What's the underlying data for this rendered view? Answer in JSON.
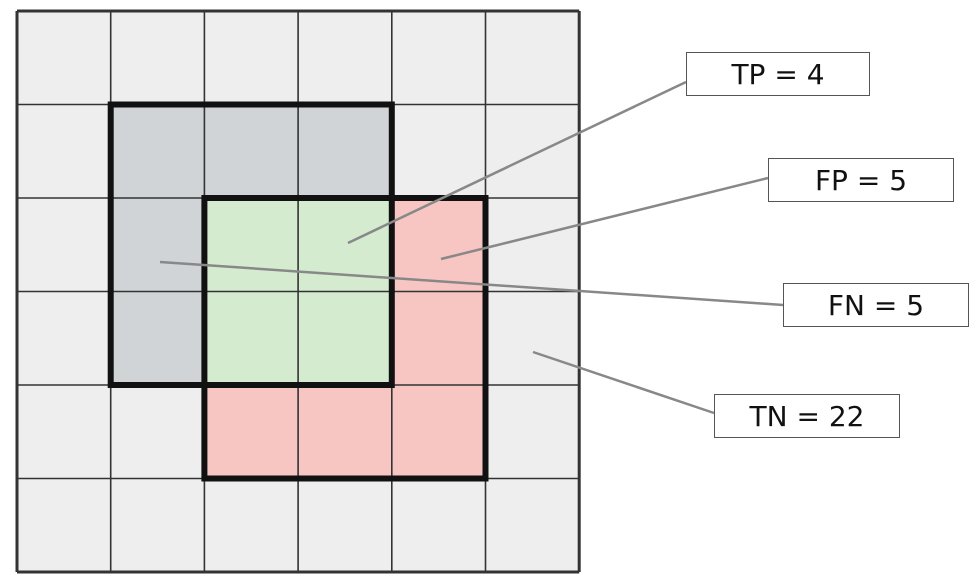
{
  "grid": {
    "rows": 6,
    "cols": 6
  },
  "colors": {
    "background_cell": "#eeeeee",
    "ground_truth_only": "#d0d4d6",
    "true_positive": "#d4ebcf",
    "prediction_only": "#f7c6c3",
    "grid_line": "#333333",
    "box_outline": "#111111",
    "leader_line": "#888888"
  },
  "regions": {
    "ground_truth": {
      "row_start": 1,
      "row_end": 3,
      "col_start": 1,
      "col_end": 3
    },
    "prediction": {
      "row_start": 2,
      "row_end": 4,
      "col_start": 2,
      "col_end": 4
    }
  },
  "labels": [
    {
      "id": "tp",
      "text": "TP = 4"
    },
    {
      "id": "fp",
      "text": "FP = 5"
    },
    {
      "id": "fn",
      "text": "FN = 5"
    },
    {
      "id": "tn",
      "text": "TN = 22"
    }
  ]
}
